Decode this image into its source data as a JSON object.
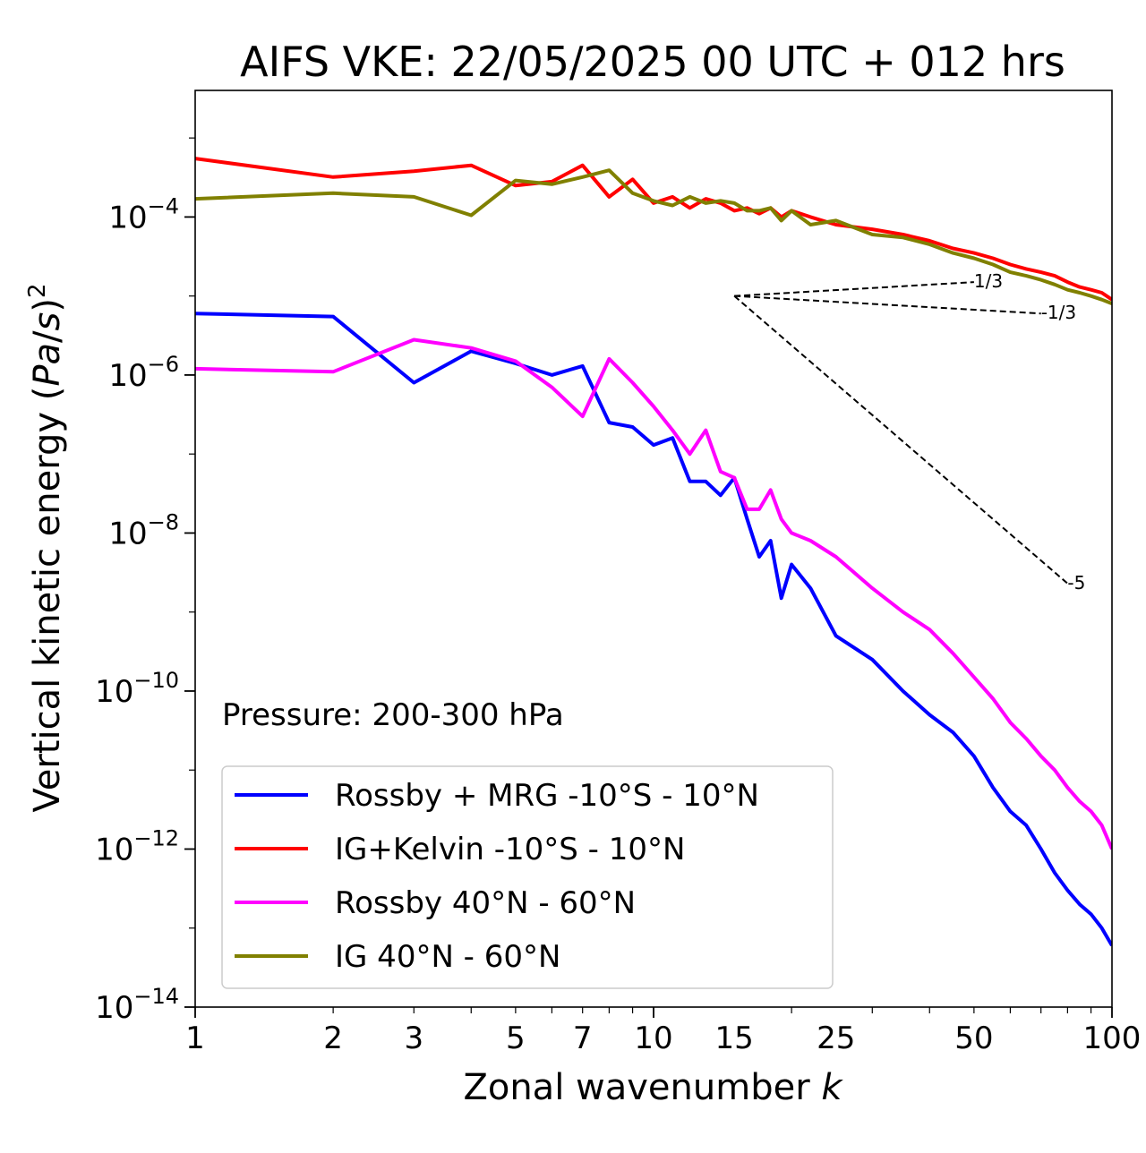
{
  "chart_data": {
    "type": "line",
    "title": "AIFS VKE: 22/05/2025 00 UTC + 012 hrs",
    "xlabel": "Zonal wavenumber k",
    "ylabel": "Vertical kinetic energy (Pa/s)^2",
    "x_scale": "log",
    "y_scale": "log",
    "xlim": [
      1,
      100
    ],
    "ylim": [
      1e-14,
      0.004
    ],
    "x_ticks": [
      1,
      2,
      3,
      5,
      7,
      10,
      15,
      25,
      50,
      100
    ],
    "x_tick_labels": [
      "1",
      "2",
      "3",
      "5",
      "7",
      "10",
      "15",
      "25",
      "50",
      "100"
    ],
    "y_ticks": [
      {
        "value": 1e-14,
        "base": "10",
        "exp": "−14"
      },
      {
        "value": 1e-12,
        "base": "10",
        "exp": "−12"
      },
      {
        "value": 1e-10,
        "base": "10",
        "exp": "−10"
      },
      {
        "value": 1e-08,
        "base": "10",
        "exp": "−8"
      },
      {
        "value": 1e-06,
        "base": "10",
        "exp": "−6"
      },
      {
        "value": 0.0001,
        "base": "10",
        "exp": "−4"
      }
    ],
    "grid": false,
    "annotation": "Pressure: 200-300 hPa",
    "legend_position": "lower-left",
    "series": [
      {
        "name": "Rossby + MRG -10°S - 10°N",
        "color": "#0000ff",
        "x": [
          1,
          2,
          3,
          4,
          5,
          6,
          7,
          8,
          9,
          10,
          11,
          12,
          13,
          14,
          15,
          16,
          17,
          18,
          19,
          20,
          22,
          25,
          30,
          35,
          40,
          45,
          50,
          55,
          60,
          65,
          70,
          75,
          80,
          85,
          90,
          95,
          100
        ],
        "y": [
          6e-06,
          5.5e-06,
          8e-07,
          2e-06,
          1.4e-06,
          1e-06,
          1.3e-06,
          2.5e-07,
          2.2e-07,
          1.3e-07,
          1.6e-07,
          4.5e-08,
          4.5e-08,
          3e-08,
          5e-08,
          1.5e-08,
          5e-09,
          8e-09,
          1.5e-09,
          4e-09,
          2e-09,
          5e-10,
          2.5e-10,
          1e-10,
          5e-11,
          3e-11,
          1.5e-11,
          6e-12,
          3e-12,
          2e-12,
          1e-12,
          5e-13,
          3e-13,
          2e-13,
          1.5e-13,
          1e-13,
          6e-14
        ]
      },
      {
        "name": "IG+Kelvin -10°S - 10°N",
        "color": "#ff0000",
        "x": [
          1,
          2,
          3,
          4,
          5,
          6,
          7,
          8,
          9,
          10,
          11,
          12,
          13,
          14,
          15,
          16,
          17,
          18,
          19,
          20,
          22,
          25,
          30,
          35,
          40,
          45,
          50,
          55,
          60,
          65,
          70,
          75,
          80,
          85,
          90,
          95,
          100
        ],
        "y": [
          0.00055,
          0.00032,
          0.00038,
          0.00045,
          0.00025,
          0.00028,
          0.00045,
          0.00018,
          0.0003,
          0.00015,
          0.00018,
          0.00013,
          0.00017,
          0.00015,
          0.00012,
          0.00013,
          0.00011,
          0.00013,
          0.0001,
          0.00012,
          0.0001,
          8e-05,
          7e-05,
          6e-05,
          5e-05,
          4e-05,
          3.5e-05,
          3e-05,
          2.5e-05,
          2.2e-05,
          2e-05,
          1.8e-05,
          1.5e-05,
          1.3e-05,
          1.2e-05,
          1.1e-05,
          9e-06
        ]
      },
      {
        "name": "Rossby 40°N - 60°N",
        "color": "#ff00ff",
        "x": [
          1,
          2,
          3,
          4,
          5,
          6,
          7,
          8,
          9,
          10,
          11,
          12,
          13,
          14,
          15,
          16,
          17,
          18,
          19,
          20,
          22,
          25,
          30,
          35,
          40,
          45,
          50,
          55,
          60,
          65,
          70,
          75,
          80,
          85,
          90,
          95,
          100
        ],
        "y": [
          1.2e-06,
          1.1e-06,
          2.8e-06,
          2.2e-06,
          1.5e-06,
          7e-07,
          3e-07,
          1.6e-06,
          8e-07,
          4e-07,
          2e-07,
          1e-07,
          2e-07,
          6e-08,
          5e-08,
          2e-08,
          2e-08,
          3.5e-08,
          1.5e-08,
          1e-08,
          8e-09,
          5e-09,
          2e-09,
          1e-09,
          6e-10,
          3e-10,
          1.5e-10,
          8e-11,
          4e-11,
          2.5e-11,
          1.5e-11,
          1e-11,
          6e-12,
          4e-12,
          3e-12,
          2e-12,
          1e-12
        ]
      },
      {
        "name": "IG 40°N - 60°N",
        "color": "#808000",
        "x": [
          1,
          2,
          3,
          4,
          5,
          6,
          7,
          8,
          9,
          10,
          11,
          12,
          13,
          14,
          15,
          16,
          17,
          18,
          19,
          20,
          22,
          25,
          30,
          35,
          40,
          45,
          50,
          55,
          60,
          65,
          70,
          75,
          80,
          85,
          90,
          95,
          100
        ],
        "y": [
          0.00017,
          0.0002,
          0.00018,
          0.000105,
          0.00029,
          0.00026,
          0.00032,
          0.00039,
          0.0002,
          0.00016,
          0.00014,
          0.00018,
          0.00015,
          0.00016,
          0.00015,
          0.00012,
          0.00012,
          0.00013,
          9e-05,
          0.00012,
          8e-05,
          9e-05,
          6e-05,
          5.5e-05,
          4.5e-05,
          3.5e-05,
          3e-05,
          2.5e-05,
          2e-05,
          1.8e-05,
          1.6e-05,
          1.4e-05,
          1.2e-05,
          1.1e-05,
          1e-05,
          9e-06,
          8e-06
        ]
      }
    ],
    "reference_lines": [
      {
        "label": "1/3",
        "x": [
          15,
          50
        ],
        "y": [
          1e-05,
          1.5e-05
        ]
      },
      {
        "label": "-1/3",
        "x": [
          15,
          70
        ],
        "y": [
          1e-05,
          6e-06
        ]
      },
      {
        "label": "-5",
        "x": [
          15,
          80
        ],
        "y": [
          1e-05,
          2.3e-09
        ]
      }
    ]
  }
}
